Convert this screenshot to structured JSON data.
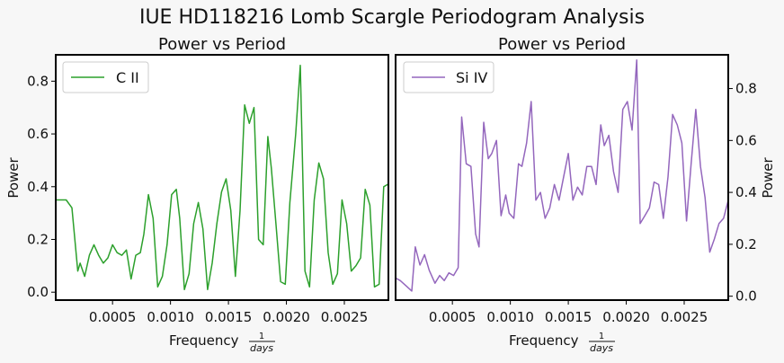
{
  "figure": {
    "suptitle": "IUE HD118216 Lomb Scargle Periodogram Analysis"
  },
  "chart_data": [
    {
      "type": "line",
      "title": "Power vs Period",
      "xlabel": "Frequency",
      "xlabel_frac_num": "1",
      "xlabel_frac_den": "days",
      "ylabel": "Power",
      "yaxis_side": "left",
      "legend_position": "top-left",
      "grid": false,
      "xlim": [
        1e-05,
        0.00288
      ],
      "ylim": [
        -0.03,
        0.9
      ],
      "xticks": [
        0.0005,
        0.001,
        0.0015,
        0.002,
        0.0025
      ],
      "xtick_labels": [
        "0.0005",
        "0.0010",
        "0.0015",
        "0.0020",
        "0.0025"
      ],
      "yticks": [
        0.0,
        0.2,
        0.4,
        0.6,
        0.8
      ],
      "ytick_labels": [
        "0.0",
        "0.2",
        "0.4",
        "0.6",
        "0.8"
      ],
      "series": [
        {
          "name": "C II",
          "color": "#2ca02c",
          "x": [
            1e-05,
            5e-05,
            0.0001,
            0.00015,
            0.0002,
            0.00022,
            0.00026,
            0.0003,
            0.00034,
            0.00038,
            0.00042,
            0.00046,
            0.0005,
            0.00054,
            0.00058,
            0.00062,
            0.00066,
            0.0007,
            0.00074,
            0.00077,
            0.00081,
            0.00085,
            0.00089,
            0.00093,
            0.00097,
            0.00101,
            0.00105,
            0.00108,
            0.00112,
            0.00116,
            0.0012,
            0.00124,
            0.00128,
            0.00132,
            0.00136,
            0.0014,
            0.00144,
            0.00148,
            0.00152,
            0.00156,
            0.0016,
            0.00164,
            0.00168,
            0.00172,
            0.00176,
            0.0018,
            0.00184,
            0.00187,
            0.00191,
            0.00195,
            0.00199,
            0.00203,
            0.00208,
            0.00212,
            0.00216,
            0.0022,
            0.00224,
            0.00228,
            0.00232,
            0.00236,
            0.0024,
            0.00244,
            0.00248,
            0.00252,
            0.00256,
            0.0026,
            0.00264,
            0.00268,
            0.00272,
            0.00276,
            0.0028,
            0.00284,
            0.00288
          ],
          "y": [
            0.35,
            0.35,
            0.35,
            0.32,
            0.08,
            0.11,
            0.06,
            0.14,
            0.18,
            0.14,
            0.11,
            0.13,
            0.18,
            0.15,
            0.14,
            0.16,
            0.05,
            0.14,
            0.15,
            0.22,
            0.37,
            0.28,
            0.02,
            0.06,
            0.18,
            0.37,
            0.39,
            0.28,
            0.01,
            0.07,
            0.26,
            0.34,
            0.24,
            0.01,
            0.11,
            0.26,
            0.38,
            0.43,
            0.31,
            0.06,
            0.31,
            0.71,
            0.64,
            0.7,
            0.2,
            0.18,
            0.59,
            0.47,
            0.26,
            0.04,
            0.03,
            0.34,
            0.6,
            0.86,
            0.08,
            0.02,
            0.35,
            0.49,
            0.43,
            0.15,
            0.03,
            0.07,
            0.35,
            0.26,
            0.08,
            0.1,
            0.13,
            0.39,
            0.33,
            0.02,
            0.03,
            0.4,
            0.41
          ]
        }
      ]
    },
    {
      "type": "line",
      "title": "Power vs Period",
      "xlabel": "Frequency",
      "xlabel_frac_num": "1",
      "xlabel_frac_den": "days",
      "ylabel": "Power",
      "yaxis_side": "right",
      "legend_position": "top-left",
      "grid": false,
      "xlim": [
        1e-05,
        0.00288
      ],
      "ylim": [
        -0.015,
        0.93
      ],
      "xticks": [
        0.0005,
        0.001,
        0.0015,
        0.002,
        0.0025
      ],
      "xtick_labels": [
        "0.0005",
        "0.0010",
        "0.0015",
        "0.0020",
        "0.0025"
      ],
      "yticks": [
        0.0,
        0.2,
        0.4,
        0.6,
        0.8
      ],
      "ytick_labels": [
        "0.0",
        "0.2",
        "0.4",
        "0.6",
        "0.8"
      ],
      "series": [
        {
          "name": "Si IV",
          "color": "#9467bd",
          "x": [
            1e-05,
            5e-05,
            0.0001,
            0.00015,
            0.00018,
            0.00022,
            0.00026,
            0.0003,
            0.00035,
            0.00039,
            0.00043,
            0.00047,
            0.00051,
            0.00055,
            0.00058,
            0.00062,
            0.00066,
            0.0007,
            0.00073,
            0.00077,
            0.00081,
            0.00084,
            0.00088,
            0.00092,
            0.00096,
            0.00099,
            0.00103,
            0.00107,
            0.0011,
            0.00114,
            0.00118,
            0.00122,
            0.00126,
            0.0013,
            0.00134,
            0.00138,
            0.00142,
            0.00146,
            0.0015,
            0.00154,
            0.00158,
            0.00162,
            0.00166,
            0.0017,
            0.00174,
            0.00178,
            0.00181,
            0.00185,
            0.00189,
            0.00193,
            0.00197,
            0.00201,
            0.00205,
            0.00209,
            0.00212,
            0.00216,
            0.0022,
            0.00224,
            0.00228,
            0.00232,
            0.00236,
            0.0024,
            0.00244,
            0.00248,
            0.00252,
            0.00256,
            0.0026,
            0.00264,
            0.00268,
            0.00272,
            0.00276,
            0.0028,
            0.00284,
            0.00288
          ],
          "y": [
            0.07,
            0.06,
            0.04,
            0.02,
            0.19,
            0.12,
            0.16,
            0.1,
            0.05,
            0.08,
            0.06,
            0.09,
            0.08,
            0.11,
            0.69,
            0.51,
            0.5,
            0.24,
            0.19,
            0.67,
            0.53,
            0.55,
            0.6,
            0.31,
            0.39,
            0.32,
            0.3,
            0.51,
            0.5,
            0.59,
            0.75,
            0.37,
            0.4,
            0.3,
            0.34,
            0.43,
            0.37,
            0.46,
            0.55,
            0.37,
            0.42,
            0.39,
            0.5,
            0.5,
            0.43,
            0.66,
            0.58,
            0.62,
            0.48,
            0.4,
            0.72,
            0.75,
            0.64,
            0.91,
            0.28,
            0.31,
            0.34,
            0.44,
            0.43,
            0.3,
            0.46,
            0.7,
            0.66,
            0.59,
            0.29,
            0.51,
            0.72,
            0.5,
            0.38,
            0.17,
            0.22,
            0.28,
            0.3,
            0.37
          ]
        }
      ]
    }
  ]
}
